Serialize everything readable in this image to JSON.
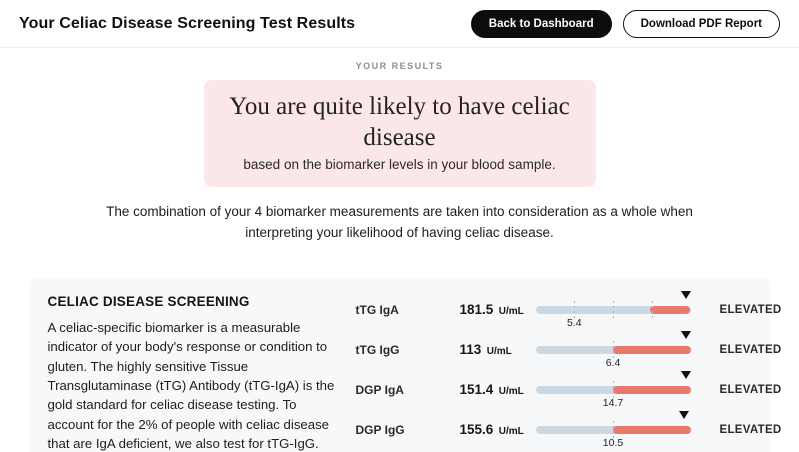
{
  "header": {
    "title": "Your Celiac Disease Screening Test Results",
    "back_button": "Back to Dashboard",
    "download_button": "Download PDF Report"
  },
  "results": {
    "section_label": "YOUR RESULTS",
    "headline": "You are quite likely to have celiac disease",
    "subheadline": "based on the biomarker levels in your blood sample.",
    "description": "The combination of your 4 biomarker measurements are taken into consideration as a whole when interpreting your likelihood of having celiac disease."
  },
  "screening_card": {
    "title": "CELIAC DISEASE SCREENING",
    "description": "A celiac-specific biomarker is a measurable indicator of your body's response or condition to gluten. The highly sensitive Tissue Transglutaminase (tTG) Antibody (tTG-IgA) is the gold standard for celiac disease testing. To account for the 2% of people with celiac disease that are IgA deficient, we also test for tTG-IgG.",
    "biomarkers": [
      {
        "name": "tTG IgA",
        "value": "181.5",
        "unit": "U/mL",
        "threshold": "5.4",
        "status": "ELEVATED",
        "bar": {
          "ticks_pct": [
            25,
            50,
            75
          ],
          "threshold_pct": 25,
          "red_start_pct": 74,
          "marker_pct": 97
        }
      },
      {
        "name": "tTG IgG",
        "value": "113",
        "unit": "U/mL",
        "threshold": "6.4",
        "status": "ELEVATED",
        "bar": {
          "ticks_pct": [
            50
          ],
          "threshold_pct": 50,
          "red_start_pct": 50,
          "marker_pct": 97
        }
      },
      {
        "name": "DGP IgA",
        "value": "151.4",
        "unit": "U/mL",
        "threshold": "14.7",
        "status": "ELEVATED",
        "bar": {
          "ticks_pct": [
            50
          ],
          "threshold_pct": 50,
          "red_start_pct": 50,
          "marker_pct": 97
        }
      },
      {
        "name": "DGP IgG",
        "value": "155.6",
        "unit": "U/mL",
        "threshold": "10.5",
        "status": "ELEVATED",
        "bar": {
          "ticks_pct": [
            50
          ],
          "threshold_pct": 50,
          "red_start_pct": 50,
          "marker_pct": 96
        }
      }
    ]
  },
  "colors": {
    "accent_red": "#e87b6d",
    "track_blue": "#cdd9e2",
    "pink_bg": "#fbe7e7",
    "marker_black": "#111111"
  }
}
